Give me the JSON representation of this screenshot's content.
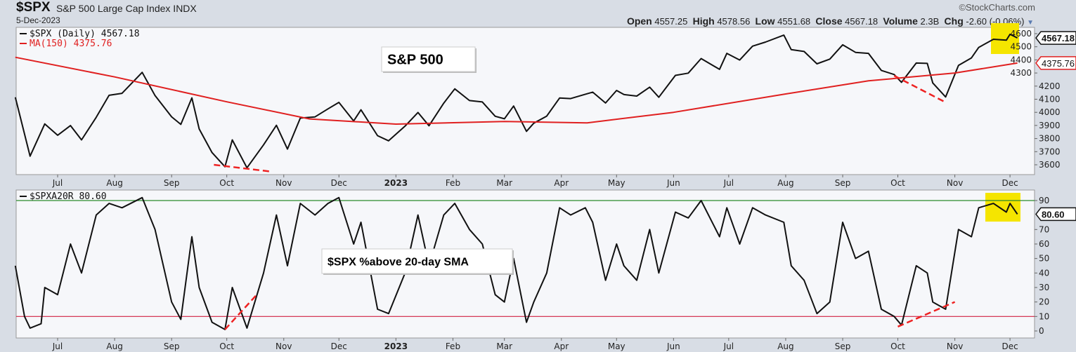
{
  "header": {
    "symbol": "$SPX",
    "name": "S&P 500 Large Cap Index INDX",
    "date": "5-Dec-2023",
    "copyright": "©StockCharts.com",
    "open_label": "Open",
    "open": "4557.25",
    "high_label": "High",
    "high": "4578.56",
    "low_label": "Low",
    "low": "4551.68",
    "close_label": "Close",
    "close": "4567.18",
    "volume_label": "Volume",
    "volume": "2.3B",
    "chg_label": "Chg",
    "chg": "-2.60 (-0.06%)"
  },
  "colors": {
    "price": "#111111",
    "ma": "#e02020",
    "upper_line": "#2a8a2a",
    "lower_line": "#d02040",
    "highlight": "#f5e500",
    "annotation": "#ee2222"
  },
  "chart_data": [
    {
      "type": "line",
      "legend": [
        "$SPX (Daily) 4567.18",
        "MA(150) 4375.76"
      ],
      "annotation": "S&P 500",
      "last_value_tags": [
        "4567.18",
        "4375.76"
      ],
      "ylim": [
        3550,
        4660
      ],
      "yticks": [
        3600,
        3700,
        3800,
        3900,
        4000,
        4100,
        4200,
        4300,
        4400,
        4500,
        4600
      ],
      "xticks": [
        "Jul",
        "Aug",
        "Sep",
        "Oct",
        "Nov",
        "Dec",
        "2023",
        "Feb",
        "Mar",
        "Apr",
        "May",
        "Jun",
        "Jul",
        "Aug",
        "Sep",
        "Oct",
        "Nov",
        "Dec"
      ],
      "xtick_dates": [
        "2022-07-01",
        "2022-08-01",
        "2022-09-01",
        "2022-10-01",
        "2022-11-01",
        "2022-12-01",
        "2023-01-01",
        "2023-02-01",
        "2023-03-01",
        "2023-04-01",
        "2023-05-01",
        "2023-06-01",
        "2023-07-01",
        "2023-08-01",
        "2023-09-01",
        "2023-10-01",
        "2023-11-01",
        "2023-12-01"
      ],
      "grid": false,
      "series": [
        {
          "name": "$SPX (Daily)",
          "points": [
            [
              "2022-06-08",
              4115
            ],
            [
              "2022-06-16",
              3666
            ],
            [
              "2022-06-24",
              3912
            ],
            [
              "2022-07-01",
              3825
            ],
            [
              "2022-07-08",
              3899
            ],
            [
              "2022-07-14",
              3790
            ],
            [
              "2022-07-22",
              3962
            ],
            [
              "2022-07-29",
              4130
            ],
            [
              "2022-08-05",
              4145
            ],
            [
              "2022-08-16",
              4305
            ],
            [
              "2022-08-23",
              4128
            ],
            [
              "2022-09-01",
              3966
            ],
            [
              "2022-09-06",
              3908
            ],
            [
              "2022-09-12",
              4110
            ],
            [
              "2022-09-16",
              3873
            ],
            [
              "2022-09-23",
              3693
            ],
            [
              "2022-09-30",
              3585
            ],
            [
              "2022-10-04",
              3790
            ],
            [
              "2022-10-12",
              3577
            ],
            [
              "2022-10-21",
              3752
            ],
            [
              "2022-10-28",
              3901
            ],
            [
              "2022-11-03",
              3720
            ],
            [
              "2022-11-10",
              3956
            ],
            [
              "2022-11-18",
              3965
            ],
            [
              "2022-11-25",
              4026
            ],
            [
              "2022-12-01",
              4076
            ],
            [
              "2022-12-09",
              3934
            ],
            [
              "2022-12-13",
              4019
            ],
            [
              "2022-12-22",
              3822
            ],
            [
              "2022-12-28",
              3783
            ],
            [
              "2023-01-06",
              3895
            ],
            [
              "2023-01-13",
              3999
            ],
            [
              "2023-01-19",
              3898
            ],
            [
              "2023-01-27",
              4070
            ],
            [
              "2023-02-02",
              4179
            ],
            [
              "2023-02-10",
              4090
            ],
            [
              "2023-02-17",
              4079
            ],
            [
              "2023-02-24",
              3970
            ],
            [
              "2023-03-01",
              3951
            ],
            [
              "2023-03-06",
              4048
            ],
            [
              "2023-03-13",
              3855
            ],
            [
              "2023-03-17",
              3917
            ],
            [
              "2023-03-24",
              3971
            ],
            [
              "2023-03-31",
              4109
            ],
            [
              "2023-04-06",
              4105
            ],
            [
              "2023-04-14",
              4138
            ],
            [
              "2023-04-18",
              4154
            ],
            [
              "2023-04-25",
              4071
            ],
            [
              "2023-05-01",
              4167
            ],
            [
              "2023-05-05",
              4136
            ],
            [
              "2023-05-12",
              4124
            ],
            [
              "2023-05-19",
              4192
            ],
            [
              "2023-05-24",
              4115
            ],
            [
              "2023-06-02",
              4282
            ],
            [
              "2023-06-09",
              4299
            ],
            [
              "2023-06-16",
              4410
            ],
            [
              "2023-06-26",
              4328
            ],
            [
              "2023-06-30",
              4450
            ],
            [
              "2023-07-07",
              4399
            ],
            [
              "2023-07-14",
              4505
            ],
            [
              "2023-07-21",
              4536
            ],
            [
              "2023-07-31",
              4589
            ],
            [
              "2023-08-04",
              4478
            ],
            [
              "2023-08-11",
              4464
            ],
            [
              "2023-08-18",
              4370
            ],
            [
              "2023-08-25",
              4406
            ],
            [
              "2023-09-01",
              4515
            ],
            [
              "2023-09-08",
              4457
            ],
            [
              "2023-09-15",
              4450
            ],
            [
              "2023-09-22",
              4320
            ],
            [
              "2023-09-29",
              4288
            ],
            [
              "2023-10-03",
              4229
            ],
            [
              "2023-10-11",
              4376
            ],
            [
              "2023-10-17",
              4373
            ],
            [
              "2023-10-20",
              4224
            ],
            [
              "2023-10-27",
              4117
            ],
            [
              "2023-11-03",
              4358
            ],
            [
              "2023-11-10",
              4415
            ],
            [
              "2023-11-14",
              4495
            ],
            [
              "2023-11-22",
              4557
            ],
            [
              "2023-11-29",
              4550
            ],
            [
              "2023-12-01",
              4595
            ],
            [
              "2023-12-05",
              4567.18
            ]
          ]
        },
        {
          "name": "MA(150)",
          "points": [
            [
              "2022-06-08",
              4420
            ],
            [
              "2022-08-01",
              4270
            ],
            [
              "2022-10-01",
              4080
            ],
            [
              "2022-11-15",
              3950
            ],
            [
              "2023-01-01",
              3910
            ],
            [
              "2023-03-01",
              3930
            ],
            [
              "2023-04-15",
              3920
            ],
            [
              "2023-06-01",
              4000
            ],
            [
              "2023-08-01",
              4140
            ],
            [
              "2023-09-15",
              4240
            ],
            [
              "2023-11-01",
              4300
            ],
            [
              "2023-12-05",
              4375.76
            ]
          ]
        }
      ],
      "trendlines": [
        [
          [
            "2022-09-24",
            3600
          ],
          [
            "2022-10-24",
            3550
          ]
        ],
        [
          [
            "2023-09-29",
            4279
          ],
          [
            "2023-10-27",
            4076
          ]
        ]
      ]
    },
    {
      "type": "line",
      "legend": [
        "$SPXA20R 80.60"
      ],
      "annotation": "$SPX %above 20-day SMA",
      "last_value_tags": [
        "80.60"
      ],
      "ylim": [
        -5,
        100
      ],
      "yticks": [
        0,
        10,
        20,
        30,
        40,
        50,
        60,
        70,
        90
      ],
      "hlines": [
        90,
        10
      ],
      "xticks": [
        "Jul",
        "Aug",
        "Sep",
        "Oct",
        "Nov",
        "Dec",
        "2023",
        "Feb",
        "Mar",
        "Apr",
        "May",
        "Jun",
        "Jul",
        "Aug",
        "Sep",
        "Oct",
        "Nov",
        "Dec"
      ],
      "grid": false,
      "series": [
        {
          "name": "$SPXA20R",
          "points": [
            [
              "2022-06-08",
              45
            ],
            [
              "2022-06-13",
              10
            ],
            [
              "2022-06-16",
              2
            ],
            [
              "2022-06-22",
              5
            ],
            [
              "2022-06-24",
              30
            ],
            [
              "2022-07-01",
              25
            ],
            [
              "2022-07-08",
              60
            ],
            [
              "2022-07-14",
              40
            ],
            [
              "2022-07-22",
              80
            ],
            [
              "2022-07-29",
              88
            ],
            [
              "2022-08-05",
              85
            ],
            [
              "2022-08-16",
              92
            ],
            [
              "2022-08-23",
              70
            ],
            [
              "2022-09-01",
              20
            ],
            [
              "2022-09-06",
              8
            ],
            [
              "2022-09-12",
              65
            ],
            [
              "2022-09-16",
              30
            ],
            [
              "2022-09-23",
              6
            ],
            [
              "2022-09-30",
              1
            ],
            [
              "2022-10-04",
              30
            ],
            [
              "2022-10-12",
              2
            ],
            [
              "2022-10-21",
              40
            ],
            [
              "2022-10-28",
              80
            ],
            [
              "2022-11-03",
              45
            ],
            [
              "2022-11-10",
              88
            ],
            [
              "2022-11-18",
              80
            ],
            [
              "2022-11-25",
              88
            ],
            [
              "2022-12-01",
              92
            ],
            [
              "2022-12-09",
              60
            ],
            [
              "2022-12-13",
              75
            ],
            [
              "2022-12-22",
              15
            ],
            [
              "2022-12-28",
              12
            ],
            [
              "2023-01-06",
              40
            ],
            [
              "2023-01-13",
              80
            ],
            [
              "2023-01-19",
              45
            ],
            [
              "2023-01-27",
              80
            ],
            [
              "2023-02-02",
              88
            ],
            [
              "2023-02-10",
              70
            ],
            [
              "2023-02-17",
              60
            ],
            [
              "2023-02-24",
              25
            ],
            [
              "2023-03-01",
              20
            ],
            [
              "2023-03-06",
              50
            ],
            [
              "2023-03-13",
              6
            ],
            [
              "2023-03-17",
              20
            ],
            [
              "2023-03-24",
              40
            ],
            [
              "2023-03-31",
              85
            ],
            [
              "2023-04-06",
              80
            ],
            [
              "2023-04-14",
              85
            ],
            [
              "2023-04-18",
              75
            ],
            [
              "2023-04-25",
              35
            ],
            [
              "2023-05-01",
              60
            ],
            [
              "2023-05-05",
              45
            ],
            [
              "2023-05-12",
              35
            ],
            [
              "2023-05-19",
              70
            ],
            [
              "2023-05-24",
              40
            ],
            [
              "2023-06-02",
              82
            ],
            [
              "2023-06-09",
              78
            ],
            [
              "2023-06-16",
              90
            ],
            [
              "2023-06-26",
              65
            ],
            [
              "2023-06-30",
              85
            ],
            [
              "2023-07-07",
              60
            ],
            [
              "2023-07-14",
              85
            ],
            [
              "2023-07-21",
              80
            ],
            [
              "2023-07-31",
              75
            ],
            [
              "2023-08-04",
              45
            ],
            [
              "2023-08-11",
              35
            ],
            [
              "2023-08-18",
              12
            ],
            [
              "2023-08-25",
              20
            ],
            [
              "2023-09-01",
              75
            ],
            [
              "2023-09-08",
              50
            ],
            [
              "2023-09-15",
              55
            ],
            [
              "2023-09-22",
              15
            ],
            [
              "2023-09-29",
              10
            ],
            [
              "2023-10-03",
              4
            ],
            [
              "2023-10-11",
              45
            ],
            [
              "2023-10-17",
              40
            ],
            [
              "2023-10-20",
              20
            ],
            [
              "2023-10-27",
              15
            ],
            [
              "2023-11-03",
              70
            ],
            [
              "2023-11-10",
              65
            ],
            [
              "2023-11-14",
              85
            ],
            [
              "2023-11-22",
              88
            ],
            [
              "2023-11-29",
              82
            ],
            [
              "2023-12-01",
              88
            ],
            [
              "2023-12-05",
              80.6
            ]
          ]
        }
      ],
      "trendlines": [
        [
          [
            "2022-09-30",
            1
          ],
          [
            "2022-10-18",
            26
          ]
        ],
        [
          [
            "2023-10-01",
            3
          ],
          [
            "2023-11-01",
            20
          ]
        ]
      ]
    }
  ]
}
